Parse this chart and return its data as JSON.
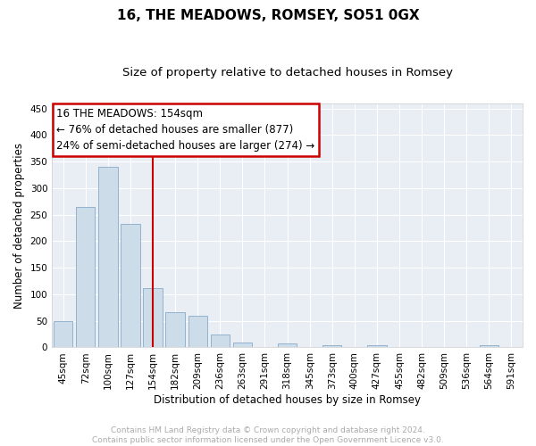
{
  "title": "16, THE MEADOWS, ROMSEY, SO51 0GX",
  "subtitle": "Size of property relative to detached houses in Romsey",
  "xlabel": "Distribution of detached houses by size in Romsey",
  "ylabel": "Number of detached properties",
  "bar_color": "#ccdce8",
  "bar_edge_color": "#88aac8",
  "background_color": "#e8eef4",
  "grid_color": "#ffffff",
  "vline_color": "#cc0000",
  "annotation_box_color": "#cc0000",
  "annotation_text": "16 THE MEADOWS: 154sqm\n← 76% of detached houses are smaller (877)\n24% of semi-detached houses are larger (274) →",
  "annotation_fontsize": 8.5,
  "categories": [
    "45sqm",
    "72sqm",
    "100sqm",
    "127sqm",
    "154sqm",
    "182sqm",
    "209sqm",
    "236sqm",
    "263sqm",
    "291sqm",
    "318sqm",
    "345sqm",
    "373sqm",
    "400sqm",
    "427sqm",
    "455sqm",
    "482sqm",
    "509sqm",
    "536sqm",
    "564sqm",
    "591sqm"
  ],
  "values": [
    50,
    265,
    340,
    232,
    112,
    67,
    60,
    24,
    9,
    0,
    8,
    0,
    4,
    0,
    4,
    0,
    0,
    0,
    0,
    4,
    0
  ],
  "vline_index": 4,
  "ylim": [
    0,
    460
  ],
  "yticks": [
    0,
    50,
    100,
    150,
    200,
    250,
    300,
    350,
    400,
    450
  ],
  "footnote": "Contains HM Land Registry data © Crown copyright and database right 2024.\nContains public sector information licensed under the Open Government Licence v3.0.",
  "footnote_color": "#aaaaaa",
  "title_fontsize": 11,
  "subtitle_fontsize": 9.5,
  "xlabel_fontsize": 8.5,
  "ylabel_fontsize": 8.5,
  "tick_fontsize": 7.5,
  "footnote_fontsize": 6.5
}
